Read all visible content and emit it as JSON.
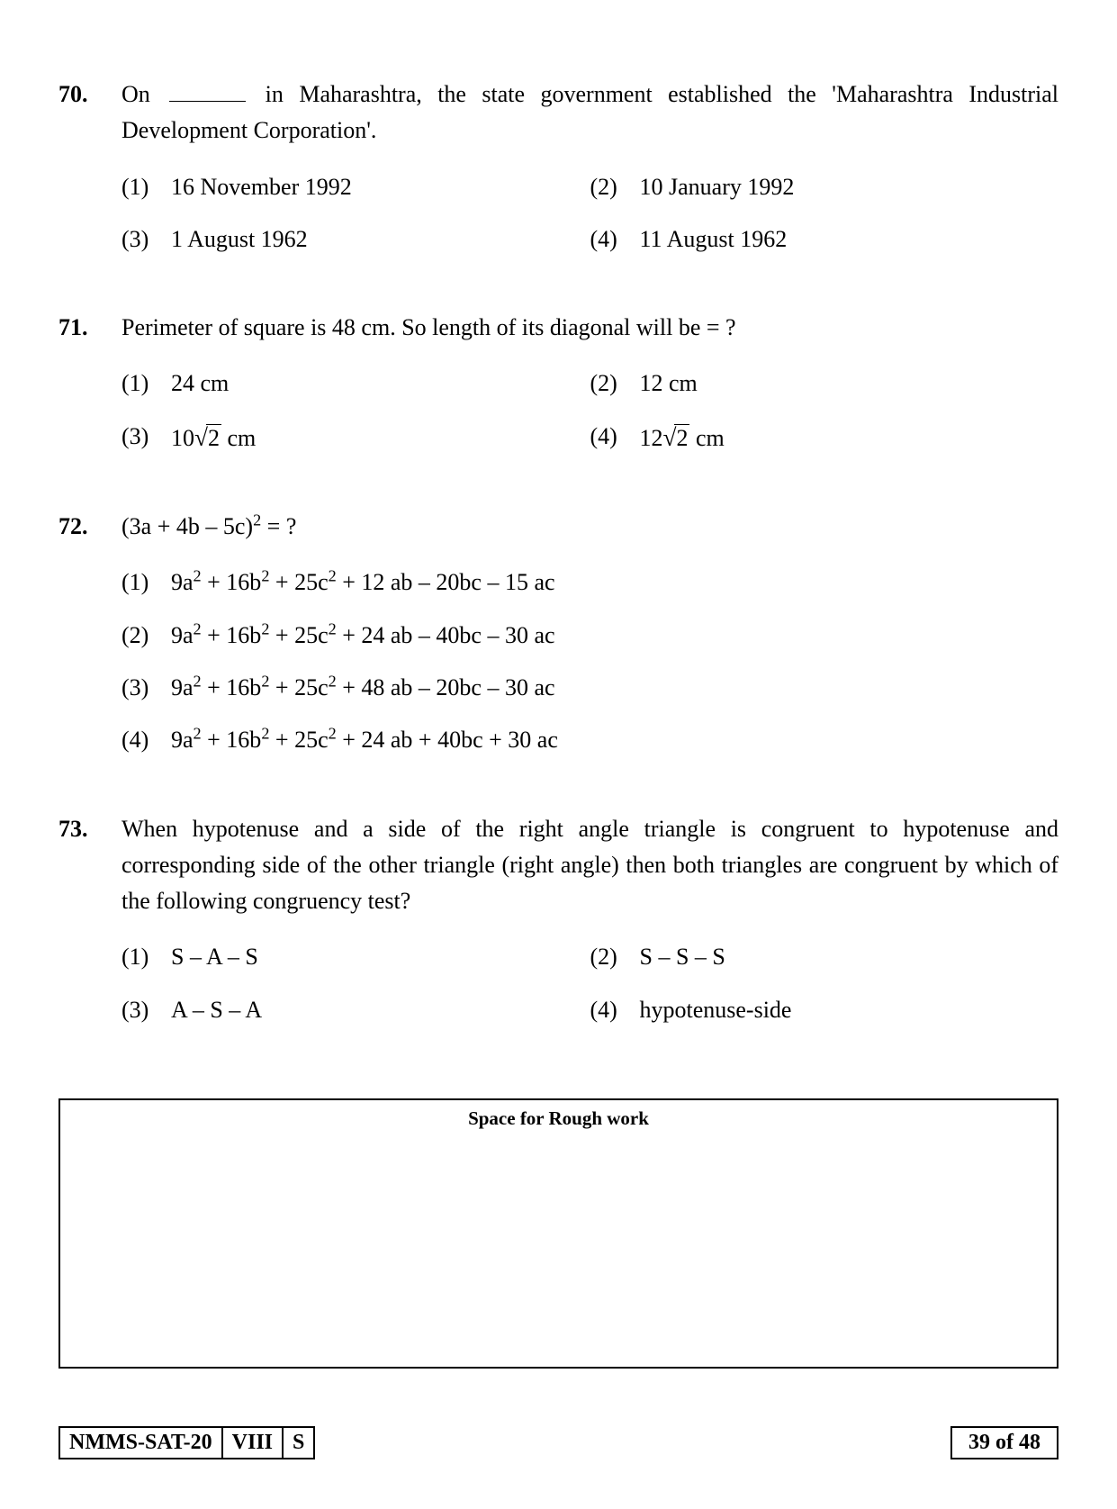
{
  "questions": [
    {
      "number": "70.",
      "text_pre": "On ",
      "text_post": " in Maharashtra, the state government established the 'Maharashtra Industrial Development Corporation'.",
      "has_blank": true,
      "options_layout": "half",
      "options": [
        {
          "num": "(1)",
          "text": "16 November 1992"
        },
        {
          "num": "(2)",
          "text": "10 January 1992"
        },
        {
          "num": "(3)",
          "text": "1 August 1962"
        },
        {
          "num": "(4)",
          "text": "11 August 1962"
        }
      ]
    },
    {
      "number": "71.",
      "text": "Perimeter of square is 48 cm. So length of its diagonal will be = ?",
      "options_layout": "half",
      "options": [
        {
          "num": "(1)",
          "text": "24 cm"
        },
        {
          "num": "(2)",
          "text": "12 cm"
        },
        {
          "num": "(3)",
          "html": "10<span class='sqrt'><span class='sqrt-inner'>2</span></span> cm"
        },
        {
          "num": "(4)",
          "html": "12<span class='sqrt'><span class='sqrt-inner'>2</span></span> cm"
        }
      ]
    },
    {
      "number": "72.",
      "text_html": "(3a + 4b – 5c)<sup>2</sup> = ?",
      "options_layout": "full",
      "options": [
        {
          "num": "(1)",
          "html": "9a<sup>2</sup> + 16b<sup>2</sup> + 25c<sup>2</sup> + 12 ab – 20bc – 15 ac"
        },
        {
          "num": "(2)",
          "html": "9a<sup>2</sup> + 16b<sup>2</sup> + 25c<sup>2</sup> + 24 ab – 40bc – 30 ac"
        },
        {
          "num": "(3)",
          "html": "9a<sup>2</sup> + 16b<sup>2</sup> + 25c<sup>2</sup> + 48 ab – 20bc – 30 ac"
        },
        {
          "num": "(4)",
          "html": "9a<sup>2</sup> + 16b<sup>2</sup> + 25c<sup>2</sup> + 24 ab + 40bc + 30 ac"
        }
      ]
    },
    {
      "number": "73.",
      "text": "When hypotenuse and a side of the right angle triangle is congruent to hypotenuse and corresponding side of the other triangle (right angle) then both triangles are congruent by which of the following congruency test?",
      "options_layout": "half",
      "options": [
        {
          "num": "(1)",
          "text": "S – A – S"
        },
        {
          "num": "(2)",
          "text": "S – S – S"
        },
        {
          "num": "(3)",
          "text": "A – S – A"
        },
        {
          "num": "(4)",
          "text": "hypotenuse-side"
        }
      ]
    }
  ],
  "rough_label": "Space for Rough work",
  "footer": {
    "box1": "NMMS-SAT-20",
    "box2": "VIII",
    "box3": "S",
    "page": "39 of 48"
  }
}
